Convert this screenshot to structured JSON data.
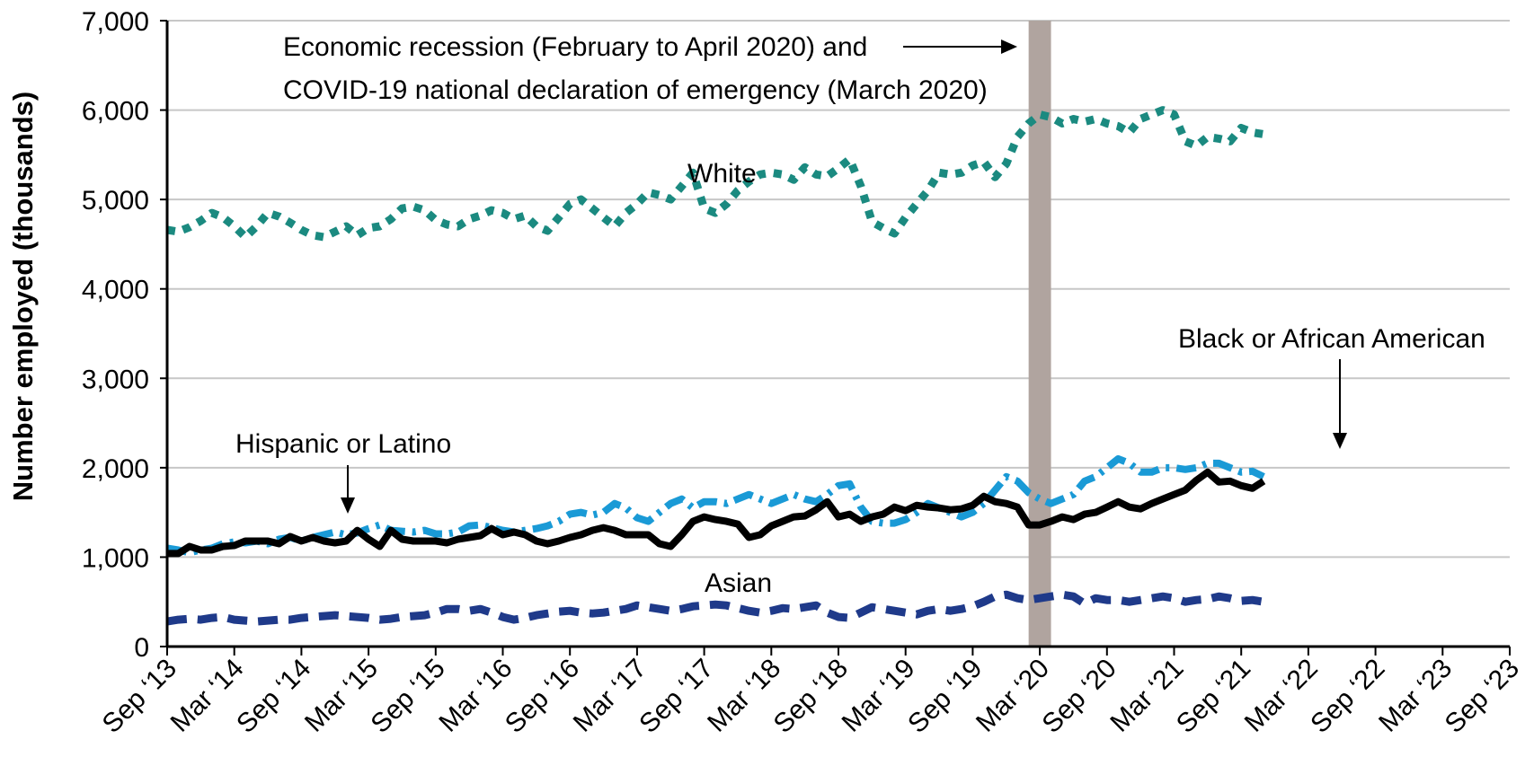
{
  "chart_data": {
    "type": "line",
    "ylabel": "Number employed (thousands)",
    "ylim": [
      0,
      7000
    ],
    "yticks": [
      0,
      1000,
      2000,
      3000,
      4000,
      5000,
      6000,
      7000
    ],
    "ytick_labels": [
      "0",
      "1,000",
      "2,000",
      "3,000",
      "4,000",
      "5,000",
      "6,000",
      "7,000"
    ],
    "xtick_labels": [
      "Sep ‘13",
      "Mar ‘14",
      "Sep ‘14",
      "Mar ‘15",
      "Sep ‘15",
      "Mar ‘16",
      "Sep ‘16",
      "Mar ‘17",
      "Sep ‘17",
      "Mar ‘18",
      "Sep ‘18",
      "Mar ‘19",
      "Sep ‘19",
      "Mar ‘20",
      "Sep ‘20",
      "Mar ‘21",
      "Sep ‘21",
      "Mar ‘22",
      "Sep ‘22",
      "Mar ‘23",
      "Sep ‘23"
    ],
    "x_months_per_tick": 6,
    "grid": true,
    "recession_band": {
      "from_month_index": 77,
      "to_month_index": 79
    },
    "annotations": {
      "recession_line1": "Economic recession (February to April 2020) and",
      "recession_line2": "COVID-19 national declaration of emergency (March 2020)",
      "white": "White",
      "hispanic": "Hispanic or Latino",
      "black": "Black or African American",
      "asian": "Asian"
    },
    "series": [
      {
        "name": "White",
        "color": "#1b8a80",
        "style": "dotted",
        "values": [
          4660,
          4640,
          4690,
          4760,
          4850,
          4800,
          4700,
          4580,
          4700,
          4850,
          4810,
          4740,
          4660,
          4600,
          4580,
          4640,
          4700,
          4600,
          4680,
          4700,
          4780,
          4900,
          4920,
          4880,
          4770,
          4720,
          4700,
          4780,
          4820,
          4880,
          4850,
          4780,
          4820,
          4700,
          4650,
          4800,
          4950,
          5000,
          4900,
          4800,
          4700,
          4850,
          4950,
          5080,
          5050,
          5000,
          5150,
          5300,
          4900,
          4850,
          4950,
          5100,
          5200,
          5280,
          5300,
          5280,
          5220,
          5360,
          5280,
          5260,
          5350,
          5450,
          5150,
          4750,
          4680,
          4620,
          4800,
          4950,
          5100,
          5300,
          5280,
          5300,
          5380,
          5420,
          5250,
          5400,
          5700,
          5850,
          5950,
          5920,
          5850,
          5900,
          5870,
          5900,
          5850,
          5820,
          5750,
          5900,
          5950,
          6000,
          5950,
          5650,
          5600,
          5700,
          5680,
          5650,
          5800,
          5750,
          5730
        ]
      },
      {
        "name": "Hispanic or Latino",
        "color": "#1a9ad6",
        "style": "dashdot",
        "values": [
          1100,
          1080,
          1050,
          1080,
          1100,
          1150,
          1170,
          1160,
          1180,
          1150,
          1200,
          1220,
          1180,
          1220,
          1250,
          1280,
          1250,
          1270,
          1320,
          1360,
          1300,
          1290,
          1280,
          1300,
          1260,
          1260,
          1280,
          1350,
          1360,
          1330,
          1300,
          1280,
          1300,
          1320,
          1350,
          1400,
          1480,
          1500,
          1470,
          1500,
          1600,
          1550,
          1440,
          1400,
          1500,
          1600,
          1650,
          1550,
          1620,
          1620,
          1600,
          1650,
          1700,
          1650,
          1600,
          1650,
          1700,
          1650,
          1620,
          1700,
          1800,
          1820,
          1560,
          1400,
          1380,
          1380,
          1420,
          1500,
          1600,
          1550,
          1500,
          1450,
          1500,
          1600,
          1750,
          1900,
          1850,
          1720,
          1650,
          1600,
          1650,
          1700,
          1850,
          1900,
          2000,
          2100,
          2050,
          1950,
          1950,
          2000,
          2000,
          1980,
          2000,
          2050,
          2050,
          2000,
          1950,
          1960,
          1900
        ]
      },
      {
        "name": "Black or African American",
        "color": "#000000",
        "style": "solid",
        "values": [
          1040,
          1040,
          1120,
          1080,
          1080,
          1120,
          1130,
          1180,
          1180,
          1180,
          1150,
          1230,
          1180,
          1220,
          1180,
          1160,
          1180,
          1300,
          1200,
          1120,
          1300,
          1200,
          1180,
          1180,
          1180,
          1160,
          1200,
          1220,
          1240,
          1320,
          1250,
          1280,
          1250,
          1180,
          1150,
          1180,
          1220,
          1250,
          1300,
          1330,
          1300,
          1250,
          1250,
          1250,
          1150,
          1120,
          1250,
          1400,
          1450,
          1420,
          1400,
          1370,
          1220,
          1250,
          1350,
          1400,
          1450,
          1460,
          1530,
          1620,
          1450,
          1480,
          1400,
          1450,
          1480,
          1560,
          1520,
          1580,
          1560,
          1550,
          1530,
          1540,
          1580,
          1680,
          1620,
          1600,
          1560,
          1360,
          1360,
          1400,
          1450,
          1420,
          1480,
          1500,
          1560,
          1620,
          1560,
          1540,
          1600,
          1650,
          1700,
          1750,
          1860,
          1950,
          1840,
          1850,
          1800,
          1770,
          1850
        ]
      },
      {
        "name": "Asian",
        "color": "#1f3a8a",
        "style": "dashed",
        "values": [
          280,
          300,
          310,
          300,
          320,
          330,
          300,
          290,
          280,
          290,
          300,
          300,
          320,
          330,
          340,
          350,
          340,
          330,
          320,
          300,
          310,
          330,
          340,
          350,
          380,
          420,
          420,
          400,
          420,
          380,
          330,
          300,
          320,
          350,
          370,
          390,
          400,
          380,
          370,
          380,
          400,
          420,
          460,
          440,
          420,
          400,
          420,
          450,
          460,
          470,
          460,
          430,
          400,
          380,
          400,
          430,
          420,
          440,
          460,
          380,
          330,
          320,
          380,
          440,
          420,
          400,
          380,
          360,
          400,
          420,
          400,
          420,
          450,
          500,
          560,
          580,
          540,
          520,
          540,
          560,
          580,
          560,
          480,
          540,
          520,
          520,
          500,
          520,
          540,
          560,
          540,
          500,
          520,
          530,
          560,
          540,
          510,
          520,
          500
        ]
      }
    ]
  }
}
